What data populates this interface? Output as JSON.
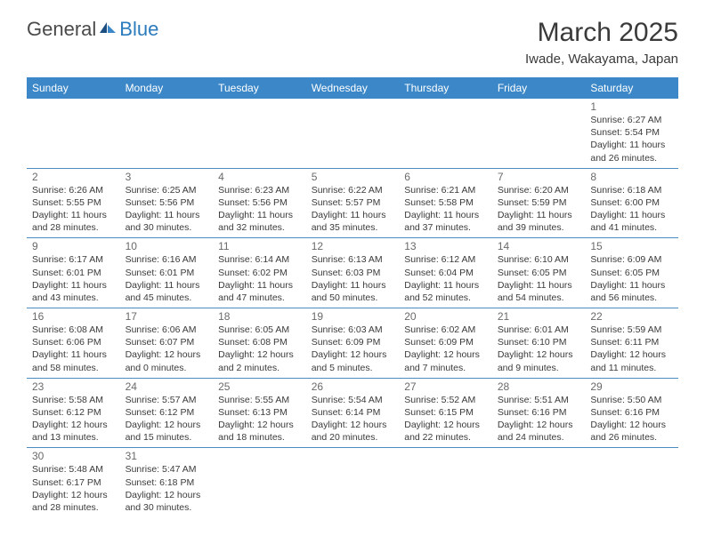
{
  "logo": {
    "text_dark": "General",
    "text_blue": "Blue"
  },
  "title": "March 2025",
  "subtitle": "Iwade, Wakayama, Japan",
  "day_headers": [
    "Sunday",
    "Monday",
    "Tuesday",
    "Wednesday",
    "Thursday",
    "Friday",
    "Saturday"
  ],
  "colors": {
    "header_bg": "#3b87c8",
    "header_text": "#ffffff",
    "cell_border": "#4a8bc2",
    "text": "#3a3a3a",
    "daynum": "#6a6a6a",
    "logo_dark": "#4a4a4a",
    "logo_blue": "#2b7bbd"
  },
  "typography": {
    "title_fontsize": 30,
    "subtitle_fontsize": 15,
    "header_fontsize": 12,
    "cell_fontsize": 10.5,
    "daynum_fontsize": 12
  },
  "weeks": [
    [
      null,
      null,
      null,
      null,
      null,
      null,
      {
        "d": "1",
        "sunrise": "Sunrise: 6:27 AM",
        "sunset": "Sunset: 5:54 PM",
        "daylight1": "Daylight: 11 hours",
        "daylight2": "and 26 minutes."
      }
    ],
    [
      {
        "d": "2",
        "sunrise": "Sunrise: 6:26 AM",
        "sunset": "Sunset: 5:55 PM",
        "daylight1": "Daylight: 11 hours",
        "daylight2": "and 28 minutes."
      },
      {
        "d": "3",
        "sunrise": "Sunrise: 6:25 AM",
        "sunset": "Sunset: 5:56 PM",
        "daylight1": "Daylight: 11 hours",
        "daylight2": "and 30 minutes."
      },
      {
        "d": "4",
        "sunrise": "Sunrise: 6:23 AM",
        "sunset": "Sunset: 5:56 PM",
        "daylight1": "Daylight: 11 hours",
        "daylight2": "and 32 minutes."
      },
      {
        "d": "5",
        "sunrise": "Sunrise: 6:22 AM",
        "sunset": "Sunset: 5:57 PM",
        "daylight1": "Daylight: 11 hours",
        "daylight2": "and 35 minutes."
      },
      {
        "d": "6",
        "sunrise": "Sunrise: 6:21 AM",
        "sunset": "Sunset: 5:58 PM",
        "daylight1": "Daylight: 11 hours",
        "daylight2": "and 37 minutes."
      },
      {
        "d": "7",
        "sunrise": "Sunrise: 6:20 AM",
        "sunset": "Sunset: 5:59 PM",
        "daylight1": "Daylight: 11 hours",
        "daylight2": "and 39 minutes."
      },
      {
        "d": "8",
        "sunrise": "Sunrise: 6:18 AM",
        "sunset": "Sunset: 6:00 PM",
        "daylight1": "Daylight: 11 hours",
        "daylight2": "and 41 minutes."
      }
    ],
    [
      {
        "d": "9",
        "sunrise": "Sunrise: 6:17 AM",
        "sunset": "Sunset: 6:01 PM",
        "daylight1": "Daylight: 11 hours",
        "daylight2": "and 43 minutes."
      },
      {
        "d": "10",
        "sunrise": "Sunrise: 6:16 AM",
        "sunset": "Sunset: 6:01 PM",
        "daylight1": "Daylight: 11 hours",
        "daylight2": "and 45 minutes."
      },
      {
        "d": "11",
        "sunrise": "Sunrise: 6:14 AM",
        "sunset": "Sunset: 6:02 PM",
        "daylight1": "Daylight: 11 hours",
        "daylight2": "and 47 minutes."
      },
      {
        "d": "12",
        "sunrise": "Sunrise: 6:13 AM",
        "sunset": "Sunset: 6:03 PM",
        "daylight1": "Daylight: 11 hours",
        "daylight2": "and 50 minutes."
      },
      {
        "d": "13",
        "sunrise": "Sunrise: 6:12 AM",
        "sunset": "Sunset: 6:04 PM",
        "daylight1": "Daylight: 11 hours",
        "daylight2": "and 52 minutes."
      },
      {
        "d": "14",
        "sunrise": "Sunrise: 6:10 AM",
        "sunset": "Sunset: 6:05 PM",
        "daylight1": "Daylight: 11 hours",
        "daylight2": "and 54 minutes."
      },
      {
        "d": "15",
        "sunrise": "Sunrise: 6:09 AM",
        "sunset": "Sunset: 6:05 PM",
        "daylight1": "Daylight: 11 hours",
        "daylight2": "and 56 minutes."
      }
    ],
    [
      {
        "d": "16",
        "sunrise": "Sunrise: 6:08 AM",
        "sunset": "Sunset: 6:06 PM",
        "daylight1": "Daylight: 11 hours",
        "daylight2": "and 58 minutes."
      },
      {
        "d": "17",
        "sunrise": "Sunrise: 6:06 AM",
        "sunset": "Sunset: 6:07 PM",
        "daylight1": "Daylight: 12 hours",
        "daylight2": "and 0 minutes."
      },
      {
        "d": "18",
        "sunrise": "Sunrise: 6:05 AM",
        "sunset": "Sunset: 6:08 PM",
        "daylight1": "Daylight: 12 hours",
        "daylight2": "and 2 minutes."
      },
      {
        "d": "19",
        "sunrise": "Sunrise: 6:03 AM",
        "sunset": "Sunset: 6:09 PM",
        "daylight1": "Daylight: 12 hours",
        "daylight2": "and 5 minutes."
      },
      {
        "d": "20",
        "sunrise": "Sunrise: 6:02 AM",
        "sunset": "Sunset: 6:09 PM",
        "daylight1": "Daylight: 12 hours",
        "daylight2": "and 7 minutes."
      },
      {
        "d": "21",
        "sunrise": "Sunrise: 6:01 AM",
        "sunset": "Sunset: 6:10 PM",
        "daylight1": "Daylight: 12 hours",
        "daylight2": "and 9 minutes."
      },
      {
        "d": "22",
        "sunrise": "Sunrise: 5:59 AM",
        "sunset": "Sunset: 6:11 PM",
        "daylight1": "Daylight: 12 hours",
        "daylight2": "and 11 minutes."
      }
    ],
    [
      {
        "d": "23",
        "sunrise": "Sunrise: 5:58 AM",
        "sunset": "Sunset: 6:12 PM",
        "daylight1": "Daylight: 12 hours",
        "daylight2": "and 13 minutes."
      },
      {
        "d": "24",
        "sunrise": "Sunrise: 5:57 AM",
        "sunset": "Sunset: 6:12 PM",
        "daylight1": "Daylight: 12 hours",
        "daylight2": "and 15 minutes."
      },
      {
        "d": "25",
        "sunrise": "Sunrise: 5:55 AM",
        "sunset": "Sunset: 6:13 PM",
        "daylight1": "Daylight: 12 hours",
        "daylight2": "and 18 minutes."
      },
      {
        "d": "26",
        "sunrise": "Sunrise: 5:54 AM",
        "sunset": "Sunset: 6:14 PM",
        "daylight1": "Daylight: 12 hours",
        "daylight2": "and 20 minutes."
      },
      {
        "d": "27",
        "sunrise": "Sunrise: 5:52 AM",
        "sunset": "Sunset: 6:15 PM",
        "daylight1": "Daylight: 12 hours",
        "daylight2": "and 22 minutes."
      },
      {
        "d": "28",
        "sunrise": "Sunrise: 5:51 AM",
        "sunset": "Sunset: 6:16 PM",
        "daylight1": "Daylight: 12 hours",
        "daylight2": "and 24 minutes."
      },
      {
        "d": "29",
        "sunrise": "Sunrise: 5:50 AM",
        "sunset": "Sunset: 6:16 PM",
        "daylight1": "Daylight: 12 hours",
        "daylight2": "and 26 minutes."
      }
    ],
    [
      {
        "d": "30",
        "sunrise": "Sunrise: 5:48 AM",
        "sunset": "Sunset: 6:17 PM",
        "daylight1": "Daylight: 12 hours",
        "daylight2": "and 28 minutes."
      },
      {
        "d": "31",
        "sunrise": "Sunrise: 5:47 AM",
        "sunset": "Sunset: 6:18 PM",
        "daylight1": "Daylight: 12 hours",
        "daylight2": "and 30 minutes."
      },
      null,
      null,
      null,
      null,
      null
    ]
  ]
}
